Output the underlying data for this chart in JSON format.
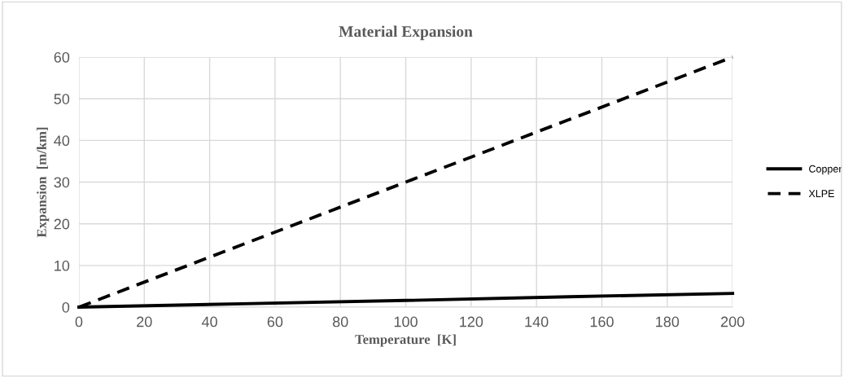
{
  "chart_data": {
    "type": "line",
    "title": "Material Expansion",
    "xlabel": "Temperature  [K]",
    "ylabel": "Expansion  [m/km]",
    "series": [
      {
        "name": "Copper",
        "color": "#000000",
        "x": [
          0,
          50,
          100,
          150,
          200
        ],
        "values": [
          0,
          0.8,
          1.6,
          2.5,
          3.3
        ],
        "line_style": "solid"
      },
      {
        "name": "XLPE",
        "color": "#000000",
        "x": [
          0,
          50,
          100,
          150,
          200
        ],
        "values": [
          0,
          15,
          30,
          45,
          60
        ],
        "line_style": "dashed"
      }
    ],
    "xlim": [
      0,
      200
    ],
    "xticks": [
      0,
      20,
      40,
      60,
      80,
      100,
      120,
      140,
      160,
      180,
      200
    ],
    "ylim": [
      0,
      60
    ],
    "yticks": [
      0,
      10,
      20,
      30,
      40,
      50,
      60
    ],
    "grid": true,
    "legend": "right",
    "marker": "none"
  }
}
